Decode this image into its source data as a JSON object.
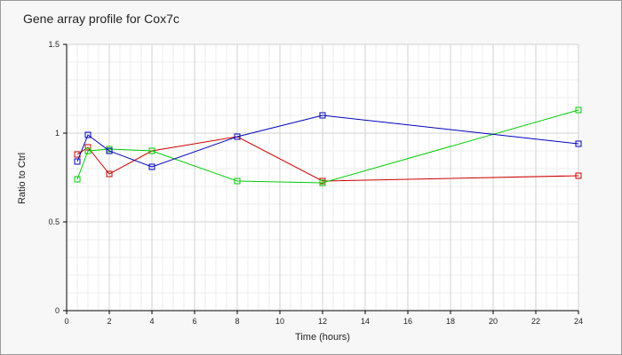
{
  "chart_data": {
    "type": "line",
    "title": "Gene array profile for Cox7c",
    "xlabel": "Time (hours)",
    "ylabel": "Ratio to Ctrl",
    "xlim": [
      0,
      24
    ],
    "ylim": [
      0,
      1.5
    ],
    "xticks": [
      0,
      2,
      4,
      6,
      8,
      10,
      12,
      14,
      16,
      18,
      20,
      22,
      24
    ],
    "yticks": [
      0,
      0.5,
      1,
      1.5
    ],
    "ytick_labels": [
      "0",
      "0.5",
      "1",
      "1.5"
    ],
    "grid": true,
    "series": [
      {
        "color": "#cc0000",
        "marker": "square",
        "x": [
          0.5,
          1,
          2,
          4,
          8,
          12,
          24
        ],
        "values": [
          0.88,
          0.92,
          0.77,
          0.9,
          0.98,
          0.73,
          0.76
        ]
      },
      {
        "color": "#00cc00",
        "marker": "square",
        "x": [
          0.5,
          1,
          2,
          4,
          8,
          12,
          24
        ],
        "values": [
          0.74,
          0.9,
          0.91,
          0.9,
          0.73,
          0.72,
          1.13
        ]
      },
      {
        "color": "#0000bb",
        "marker": "square",
        "x": [
          0.5,
          1,
          2,
          4,
          8,
          12,
          24
        ],
        "values": [
          0.84,
          0.99,
          0.9,
          0.81,
          0.98,
          1.1,
          0.94
        ]
      }
    ]
  }
}
